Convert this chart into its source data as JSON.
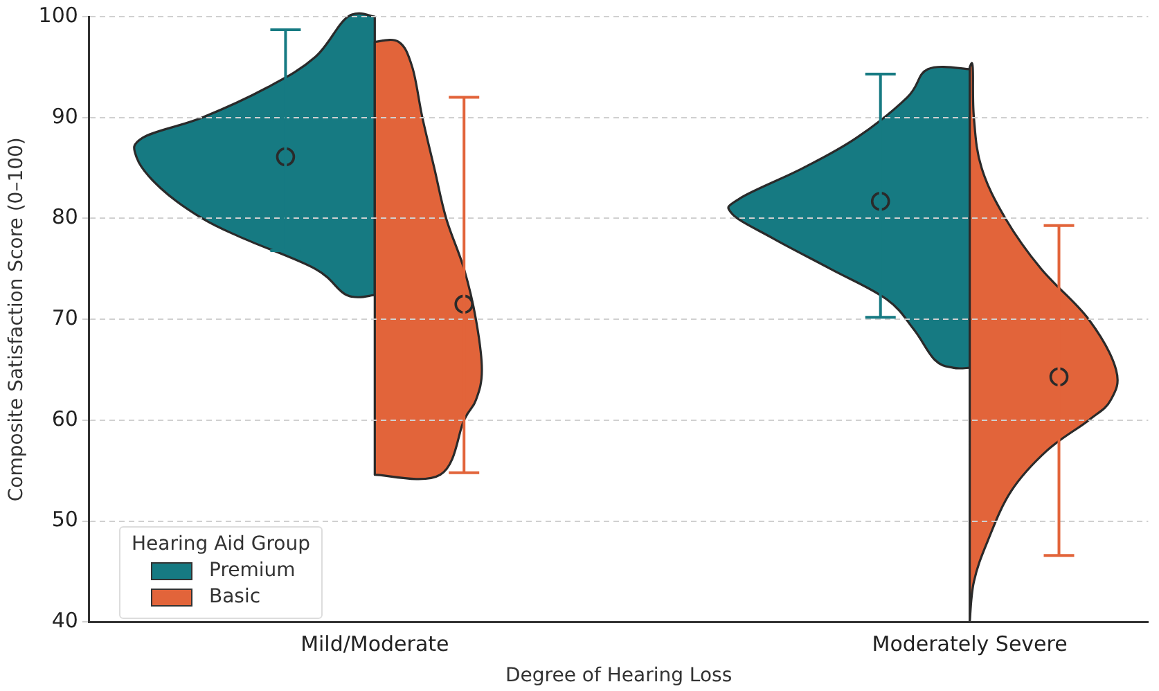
{
  "chart_data": {
    "type": "scatter",
    "xlabel": "Degree of Hearing Loss",
    "ylabel": "Composite Satisfaction Score (0–100)",
    "legend_title": "Hearing Aid Group",
    "legend": "bottom left",
    "grid": "y",
    "marker": "circle",
    "categories": [
      "Mild/Moderate",
      "Moderately Severe"
    ],
    "ylim": [
      40,
      100
    ],
    "yticks": [
      40,
      50,
      60,
      70,
      80,
      90,
      100
    ],
    "series": [
      {
        "type": "scatter",
        "name": "Premium",
        "color": "#167a82",
        "values": [
          86.1,
          81.7
        ],
        "errors": [
          [
            76.8,
            98.7
          ],
          [
            70.2,
            94.3
          ]
        ]
      },
      {
        "type": "scatter",
        "name": "Basic",
        "color": "#e2643a",
        "values": [
          71.5,
          64.3
        ],
        "errors": [
          [
            54.8,
            92
          ],
          [
            46.6,
            79.3
          ]
        ]
      }
    ]
  }
}
